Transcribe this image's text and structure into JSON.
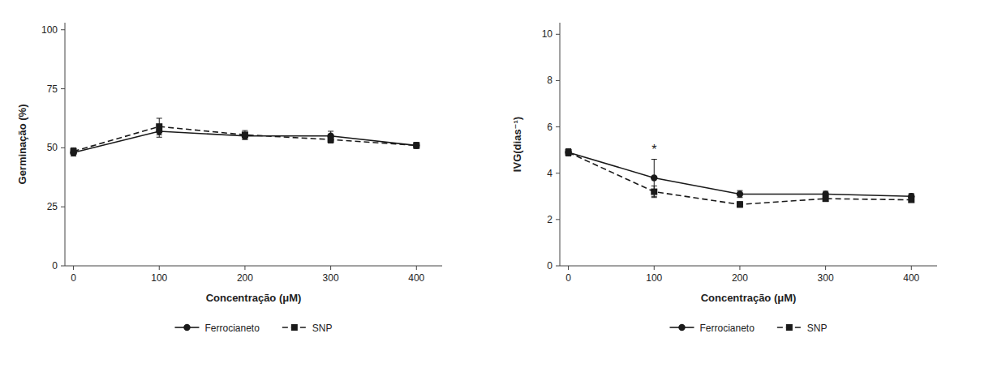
{
  "chart_data": [
    {
      "type": "line",
      "x_label": "Concentração (μM)",
      "y_label": "Germinação (%)",
      "x": [
        0,
        100,
        200,
        300,
        400
      ],
      "xlim": [
        -10,
        430
      ],
      "xticks": [
        0,
        100,
        200,
        300,
        400
      ],
      "ylim": [
        0,
        103
      ],
      "yticks": [
        0,
        25,
        50,
        75,
        100
      ],
      "grid": false,
      "legend": "bottom",
      "series": [
        {
          "name": "Ferrocianeto",
          "color": "#1a1a1a",
          "marker": "circle",
          "line_style": "solid",
          "values": [
            48,
            57,
            55,
            55,
            51
          ],
          "errors": [
            1.5,
            2.5,
            1.5,
            2.0,
            1.2
          ]
        },
        {
          "name": "SNP",
          "color": "#1a1a1a",
          "marker": "square",
          "line_style": "dashed",
          "values": [
            48.5,
            59,
            55.5,
            53.5,
            51
          ],
          "errors": [
            1.5,
            3.5,
            1.8,
            1.5,
            1.2
          ]
        }
      ]
    },
    {
      "type": "line",
      "x_label": "Concentração (μM)",
      "y_label": "IVG(dias⁻¹)",
      "x": [
        0,
        100,
        200,
        300,
        400
      ],
      "xlim": [
        -10,
        430
      ],
      "xticks": [
        0,
        100,
        200,
        300,
        400
      ],
      "ylim": [
        0,
        10.5
      ],
      "yticks": [
        0,
        2,
        4,
        6,
        8,
        10
      ],
      "grid": false,
      "legend": "bottom",
      "series": [
        {
          "name": "Ferrocianeto",
          "color": "#1a1a1a",
          "marker": "circle",
          "line_style": "solid",
          "values": [
            4.9,
            3.8,
            3.1,
            3.1,
            3.0
          ],
          "errors": [
            0.15,
            0.8,
            0.15,
            0.12,
            0.12
          ]
        },
        {
          "name": "SNP",
          "color": "#1a1a1a",
          "marker": "square",
          "line_style": "dashed",
          "values": [
            4.9,
            3.2,
            2.65,
            2.9,
            2.85
          ],
          "errors": [
            0.15,
            0.25,
            0.12,
            0.12,
            0.1
          ]
        }
      ],
      "annotations": [
        {
          "text": "*",
          "x": 100,
          "y": 4.75
        }
      ]
    }
  ]
}
